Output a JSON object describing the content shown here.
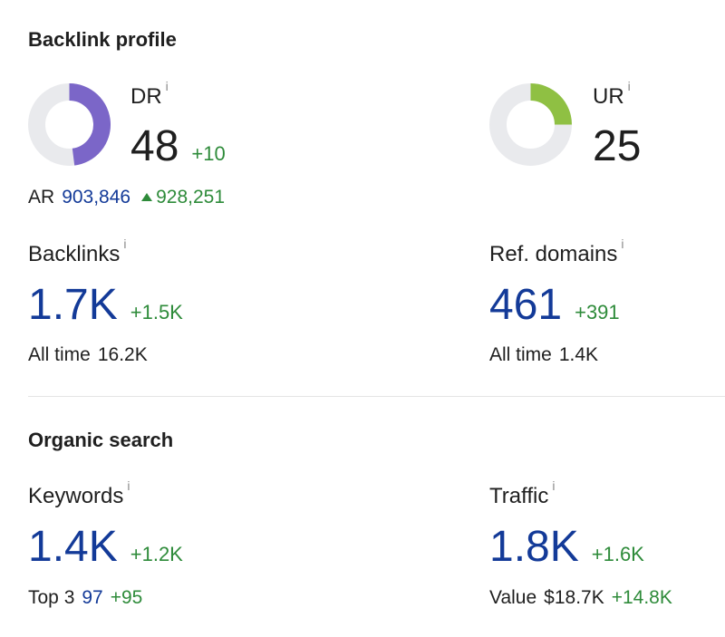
{
  "backlink_profile": {
    "title": "Backlink profile",
    "dr": {
      "label": "DR",
      "info": "i",
      "value": "48",
      "delta": "+10",
      "percent": 48,
      "color": "#7b66c8"
    },
    "ur": {
      "label": "UR",
      "info": "i",
      "value": "25",
      "percent": 25,
      "color": "#8fc043"
    },
    "ar": {
      "label": "AR",
      "value": "903,846",
      "change": "928,251"
    },
    "backlinks": {
      "label": "Backlinks",
      "info": "i",
      "value": "1.7K",
      "delta": "+1.5K",
      "all_time_label": "All time",
      "all_time_value": "16.2K"
    },
    "ref_domains": {
      "label": "Ref. domains",
      "info": "i",
      "value": "461",
      "delta": "+391",
      "all_time_label": "All time",
      "all_time_value": "1.4K"
    }
  },
  "organic_search": {
    "title": "Organic search",
    "keywords": {
      "label": "Keywords",
      "info": "i",
      "value": "1.4K",
      "delta": "+1.2K",
      "sub_label": "Top 3",
      "sub_value": "97",
      "sub_delta": "+95"
    },
    "traffic": {
      "label": "Traffic",
      "info": "i",
      "value": "1.8K",
      "delta": "+1.6K",
      "sub_label": "Value",
      "sub_value": "$18.7K",
      "sub_delta": "+14.8K"
    }
  },
  "colors": {
    "track": "#e9eaed",
    "blue": "#133a98",
    "green": "#2e8b3a"
  }
}
